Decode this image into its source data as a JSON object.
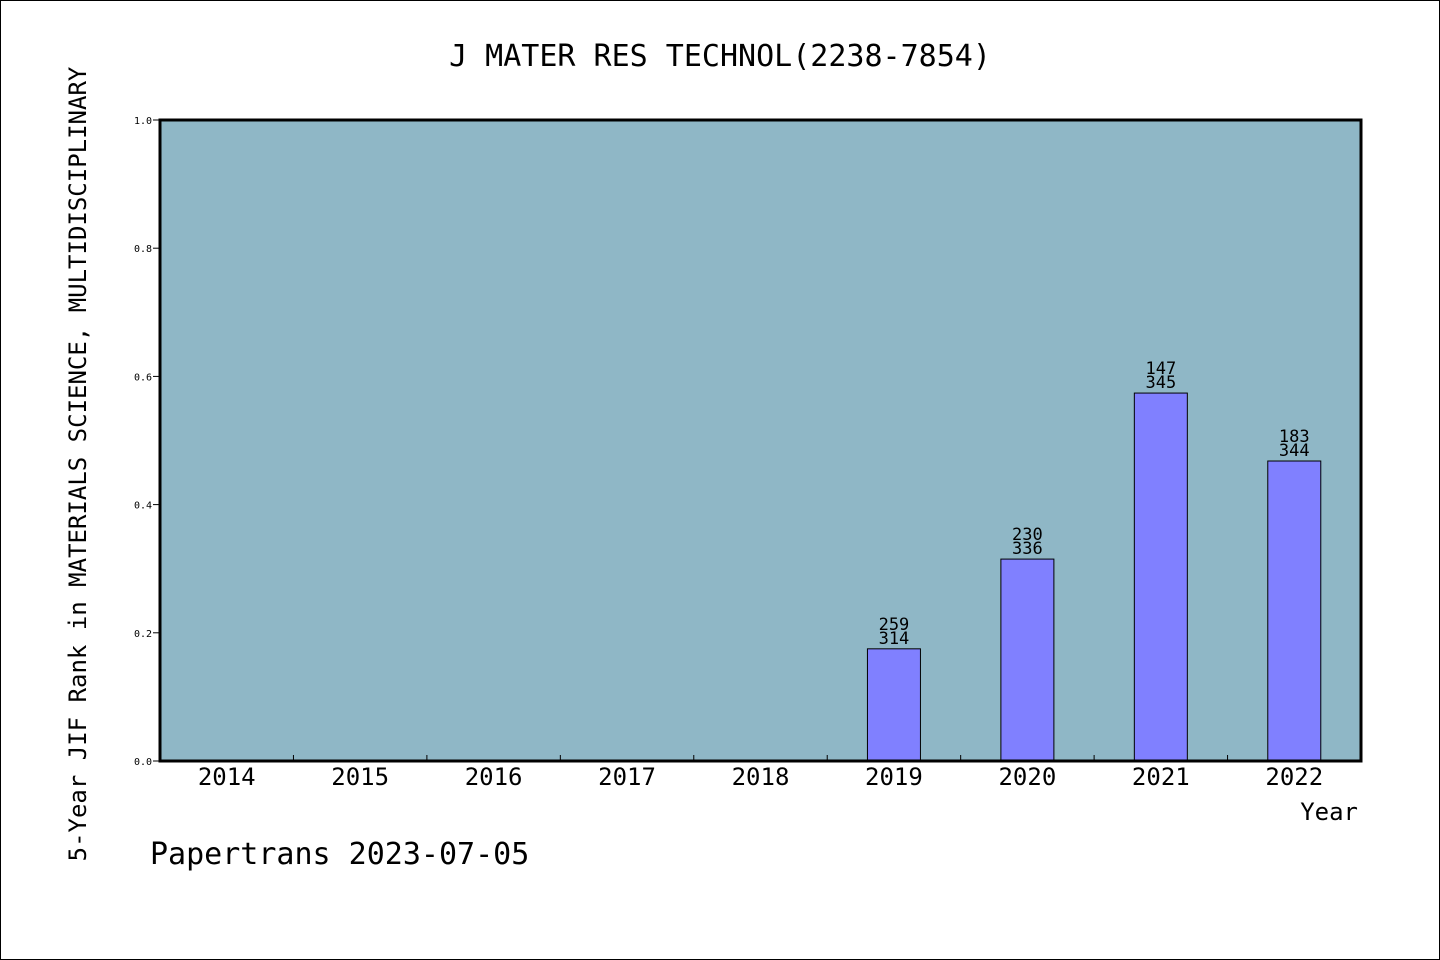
{
  "chart_data": {
    "type": "bar",
    "title": "J MATER RES TECHNOL(2238-7854)",
    "xlabel": "Year",
    "ylabel": "5-Year JIF Rank in MATERIALS SCIENCE, MULTIDISCIPLINARY",
    "ylim": [
      0,
      1.0
    ],
    "yticks": [
      "0.0",
      "0.2",
      "0.4",
      "0.6",
      "0.8",
      "1.0"
    ],
    "categories": [
      "2014",
      "2015",
      "2016",
      "2017",
      "2018",
      "2019",
      "2020",
      "2021",
      "2022"
    ],
    "values": [
      null,
      null,
      null,
      null,
      null,
      0.175,
      0.315,
      0.574,
      0.468
    ],
    "rank_labels": [
      null,
      null,
      null,
      null,
      null,
      "259",
      "230",
      "147",
      "183"
    ],
    "total_labels": [
      null,
      null,
      null,
      null,
      null,
      "314",
      "336",
      "345",
      "344"
    ],
    "grid": false,
    "colors": {
      "plot_background": "#8FB7C6",
      "bar_fill": "#8080FF",
      "bar_stroke": "#000000",
      "axis": "#000000"
    }
  },
  "footer": {
    "source": "Papertrans 2023-07-05"
  }
}
